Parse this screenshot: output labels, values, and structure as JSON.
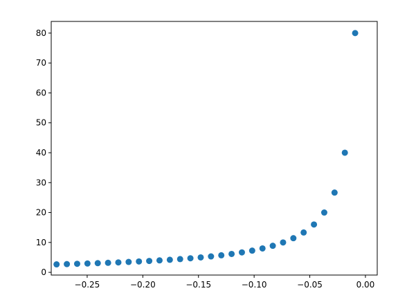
{
  "chart_data": {
    "type": "scatter",
    "color": "#1f77b4",
    "x": [
      -0.2775,
      -0.26825,
      -0.259,
      -0.24975,
      -0.2405,
      -0.23125,
      -0.222,
      -0.21275,
      -0.2035,
      -0.19425,
      -0.185,
      -0.17575,
      -0.1665,
      -0.15725,
      -0.148,
      -0.13875,
      -0.1295,
      -0.12025,
      -0.111,
      -0.10175,
      -0.0925,
      -0.08325,
      -0.074,
      -0.06475,
      -0.0555,
      -0.04625,
      -0.037,
      -0.02775,
      -0.0185,
      -0.00925
    ],
    "values": [
      2.67,
      2.76,
      2.86,
      2.96,
      3.08,
      3.2,
      3.33,
      3.48,
      3.64,
      3.81,
      4,
      4.21,
      4.44,
      4.71,
      5,
      5.33,
      5.71,
      6.15,
      6.67,
      7.27,
      8,
      8.89,
      10,
      11.43,
      13.33,
      16,
      20,
      26.67,
      40,
      80
    ],
    "xlim": [
      -0.2823,
      0.0106
    ],
    "ylim": [
      -0.9,
      83.9
    ],
    "xticks": [
      {
        "value": -0.25,
        "label": "−0.25"
      },
      {
        "value": -0.2,
        "label": "−0.20"
      },
      {
        "value": -0.15,
        "label": "−0.15"
      },
      {
        "value": -0.1,
        "label": "−0.10"
      },
      {
        "value": -0.05,
        "label": "−0.05"
      },
      {
        "value": 0,
        "label": "0.00"
      }
    ],
    "yticks": [
      0,
      10,
      20,
      30,
      40,
      50,
      60,
      70,
      80
    ]
  }
}
